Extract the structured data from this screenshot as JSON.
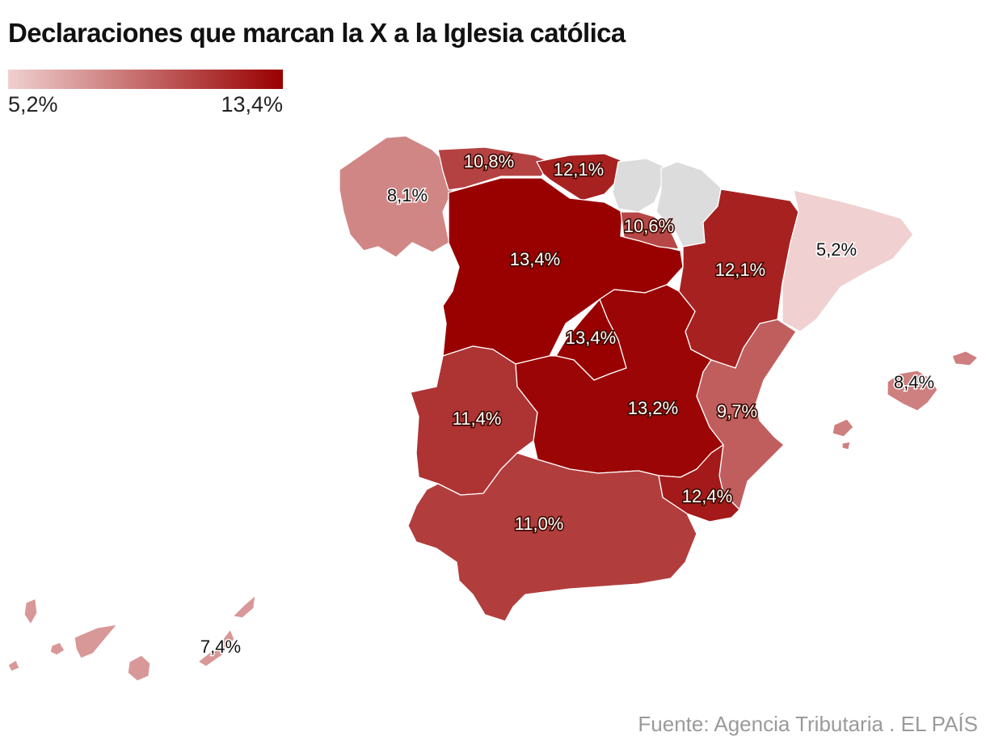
{
  "title": "Declaraciones que marcan la X a la Iglesia católica",
  "legend": {
    "min_label": "5,2%",
    "max_label": "13,4%",
    "min_value": 5.2,
    "max_value": 13.4,
    "min_color": "#f0d0d0",
    "max_color": "#990000"
  },
  "no_data_color": "#dcdcdc",
  "regions": [
    {
      "id": "galicia",
      "name": "Galicia",
      "value": 8.1,
      "label": "8,1%"
    },
    {
      "id": "asturias",
      "name": "Asturias",
      "value": 10.8,
      "label": "10,8%"
    },
    {
      "id": "cantabria",
      "name": "Cantabria",
      "value": 12.1,
      "label": "12,1%"
    },
    {
      "id": "pais-vasco",
      "name": "País Vasco",
      "value": null,
      "label": ""
    },
    {
      "id": "navarra",
      "name": "Navarra",
      "value": null,
      "label": ""
    },
    {
      "id": "la-rioja",
      "name": "La Rioja",
      "value": 10.6,
      "label": "10,6%"
    },
    {
      "id": "aragon",
      "name": "Aragón",
      "value": 12.1,
      "label": "12,1%"
    },
    {
      "id": "cataluna",
      "name": "Cataluña",
      "value": 5.2,
      "label": "5,2%"
    },
    {
      "id": "castilla-leon",
      "name": "Castilla y León",
      "value": 13.4,
      "label": "13,4%"
    },
    {
      "id": "madrid",
      "name": "Madrid",
      "value": 13.4,
      "label": "13,4%"
    },
    {
      "id": "castilla-la-mancha",
      "name": "Castilla-La Mancha",
      "value": 13.2,
      "label": "13,2%"
    },
    {
      "id": "comunidad-valenciana",
      "name": "Comunidad Valenciana",
      "value": 9.7,
      "label": "9,7%"
    },
    {
      "id": "extremadura",
      "name": "Extremadura",
      "value": 11.4,
      "label": "11,4%"
    },
    {
      "id": "murcia",
      "name": "Murcia",
      "value": 12.4,
      "label": "12,4%"
    },
    {
      "id": "andalucia",
      "name": "Andalucía",
      "value": 11.0,
      "label": "11,0%"
    },
    {
      "id": "baleares",
      "name": "Baleares",
      "value": 8.4,
      "label": "8,4%"
    },
    {
      "id": "canarias",
      "name": "Canarias",
      "value": 7.4,
      "label": "7,4%"
    }
  ],
  "source": "Fuente: Agencia Tributaria . EL PAÍS"
}
